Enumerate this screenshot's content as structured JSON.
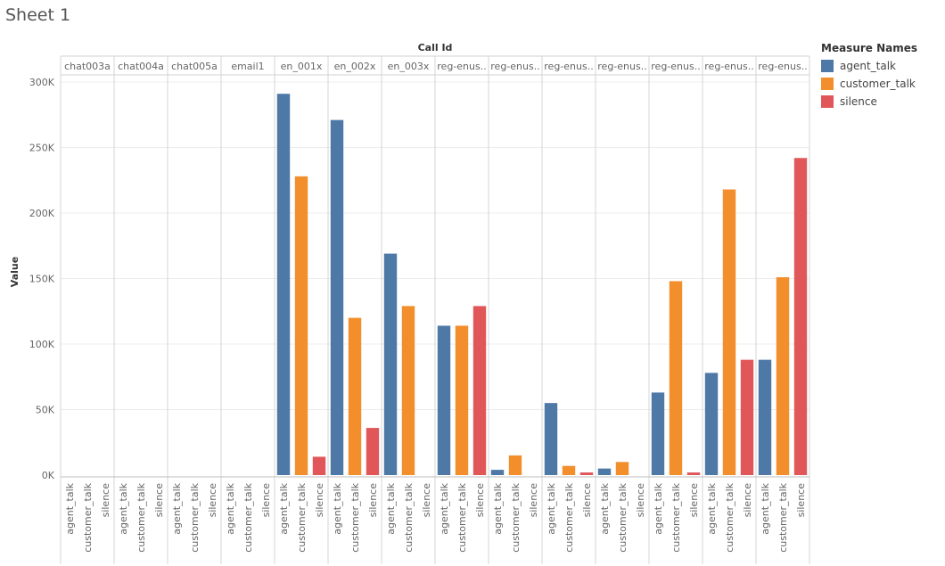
{
  "sheet": {
    "title": "Sheet 1"
  },
  "chart_data": {
    "type": "bar",
    "column_header": "Call Id",
    "ylabel": "Value",
    "ylim": [
      0,
      300000
    ],
    "yticks": [
      0,
      50000,
      100000,
      150000,
      200000,
      250000,
      300000
    ],
    "ytick_labels": [
      "0K",
      "50K",
      "100K",
      "150K",
      "200K",
      "250K",
      "300K"
    ],
    "grid": true,
    "legend_position": "right",
    "measures": [
      "agent_talk",
      "customer_talk",
      "silence"
    ],
    "groups": [
      "chat003a",
      "chat004a",
      "chat005a",
      "email1",
      "en_001x",
      "en_002x",
      "en_003x",
      "reg-enus..",
      "reg-enus..",
      "reg-enus..",
      "reg-enus..",
      "reg-enus..",
      "reg-enus..",
      "reg-enus.."
    ],
    "series": [
      {
        "name": "agent_talk",
        "color": "#4e79a7",
        "values": [
          null,
          null,
          null,
          null,
          291000,
          271000,
          169000,
          114000,
          4000,
          55000,
          5000,
          63000,
          78000,
          88000
        ]
      },
      {
        "name": "customer_talk",
        "color": "#f28e2b",
        "values": [
          null,
          null,
          null,
          null,
          228000,
          120000,
          129000,
          114000,
          15000,
          7000,
          10000,
          148000,
          218000,
          151000
        ]
      },
      {
        "name": "silence",
        "color": "#e15759",
        "values": [
          null,
          null,
          null,
          null,
          14000,
          36000,
          null,
          129000,
          null,
          2000,
          null,
          2000,
          88000,
          242000
        ]
      }
    ]
  },
  "legend": {
    "title": "Measure Names",
    "items": [
      {
        "label": "agent_talk",
        "color": "#4e79a7"
      },
      {
        "label": "customer_talk",
        "color": "#f28e2b"
      },
      {
        "label": "silence",
        "color": "#e15759"
      }
    ]
  }
}
